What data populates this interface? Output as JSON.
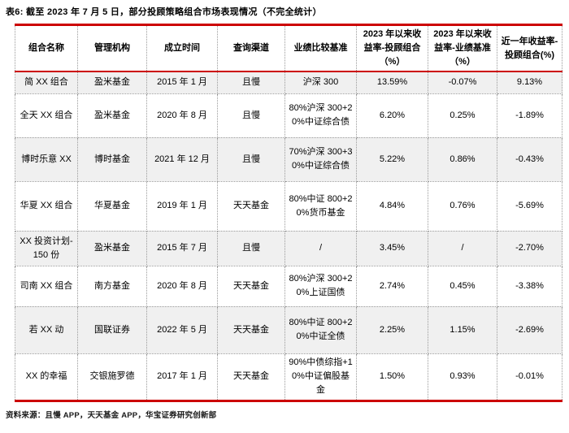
{
  "title": "表6: 截至 2023 年 7 月 5 日，部分投顾策略组合市场表现情况（不完全统计）",
  "footer": "资料来源：且慢 APP，天天基金 APP，华宝证券研究创新部",
  "colors": {
    "accent_red": "#cc0000",
    "row_alt_gray": "#f0f0f0",
    "border_dotted_gray": "#9a9a9a"
  },
  "table": {
    "headers": [
      "组合名称",
      "管理机构",
      "成立时间",
      "查询渠道",
      "业绩比较基准",
      "2023 年以来收益率-投顾组合（%）",
      "2023 年以来收益率-业绩基准（%）",
      "近一年收益率-投顾组合(%)"
    ],
    "rows": [
      [
        "简 XX 组合",
        "盈米基金",
        "2015 年 1 月",
        "且慢",
        "沪深 300",
        "13.59%",
        "-0.07%",
        "9.13%"
      ],
      [
        "全天 XX 组合",
        "盈米基金",
        "2020 年 8 月",
        "且慢",
        "80%沪深 300+20%中证综合债",
        "6.20%",
        "0.25%",
        "-1.89%"
      ],
      [
        "博时乐意 XX",
        "博时基金",
        "2021 年 12 月",
        "且慢",
        "70%沪深 300+30%中证综合债",
        "5.22%",
        "0.86%",
        "-0.43%"
      ],
      [
        "华夏 XX 组合",
        "华夏基金",
        "2019 年 1 月",
        "天天基金",
        "80%中证 800+20%货币基金",
        "4.84%",
        "0.76%",
        "-5.69%"
      ],
      [
        "XX 投资计划-150 份",
        "盈米基金",
        "2015 年 7 月",
        "且慢",
        "/",
        "3.45%",
        "/",
        "-2.70%"
      ],
      [
        "司南 XX 组合",
        "南方基金",
        "2020 年 8 月",
        "天天基金",
        "80%沪深 300+20%上证国债",
        "2.74%",
        "0.45%",
        "-3.38%"
      ],
      [
        "若 XX 动",
        "国联证券",
        "2022 年 5 月",
        "天天基金",
        "80%中证 800+20%中证全债",
        "2.25%",
        "1.15%",
        "-2.69%"
      ],
      [
        "XX 的幸福",
        "交银施罗德",
        "2017 年 1 月",
        "天天基金",
        "90%中债综指+10%中证偏股基金",
        "1.50%",
        "0.93%",
        "-0.01%"
      ]
    ]
  }
}
